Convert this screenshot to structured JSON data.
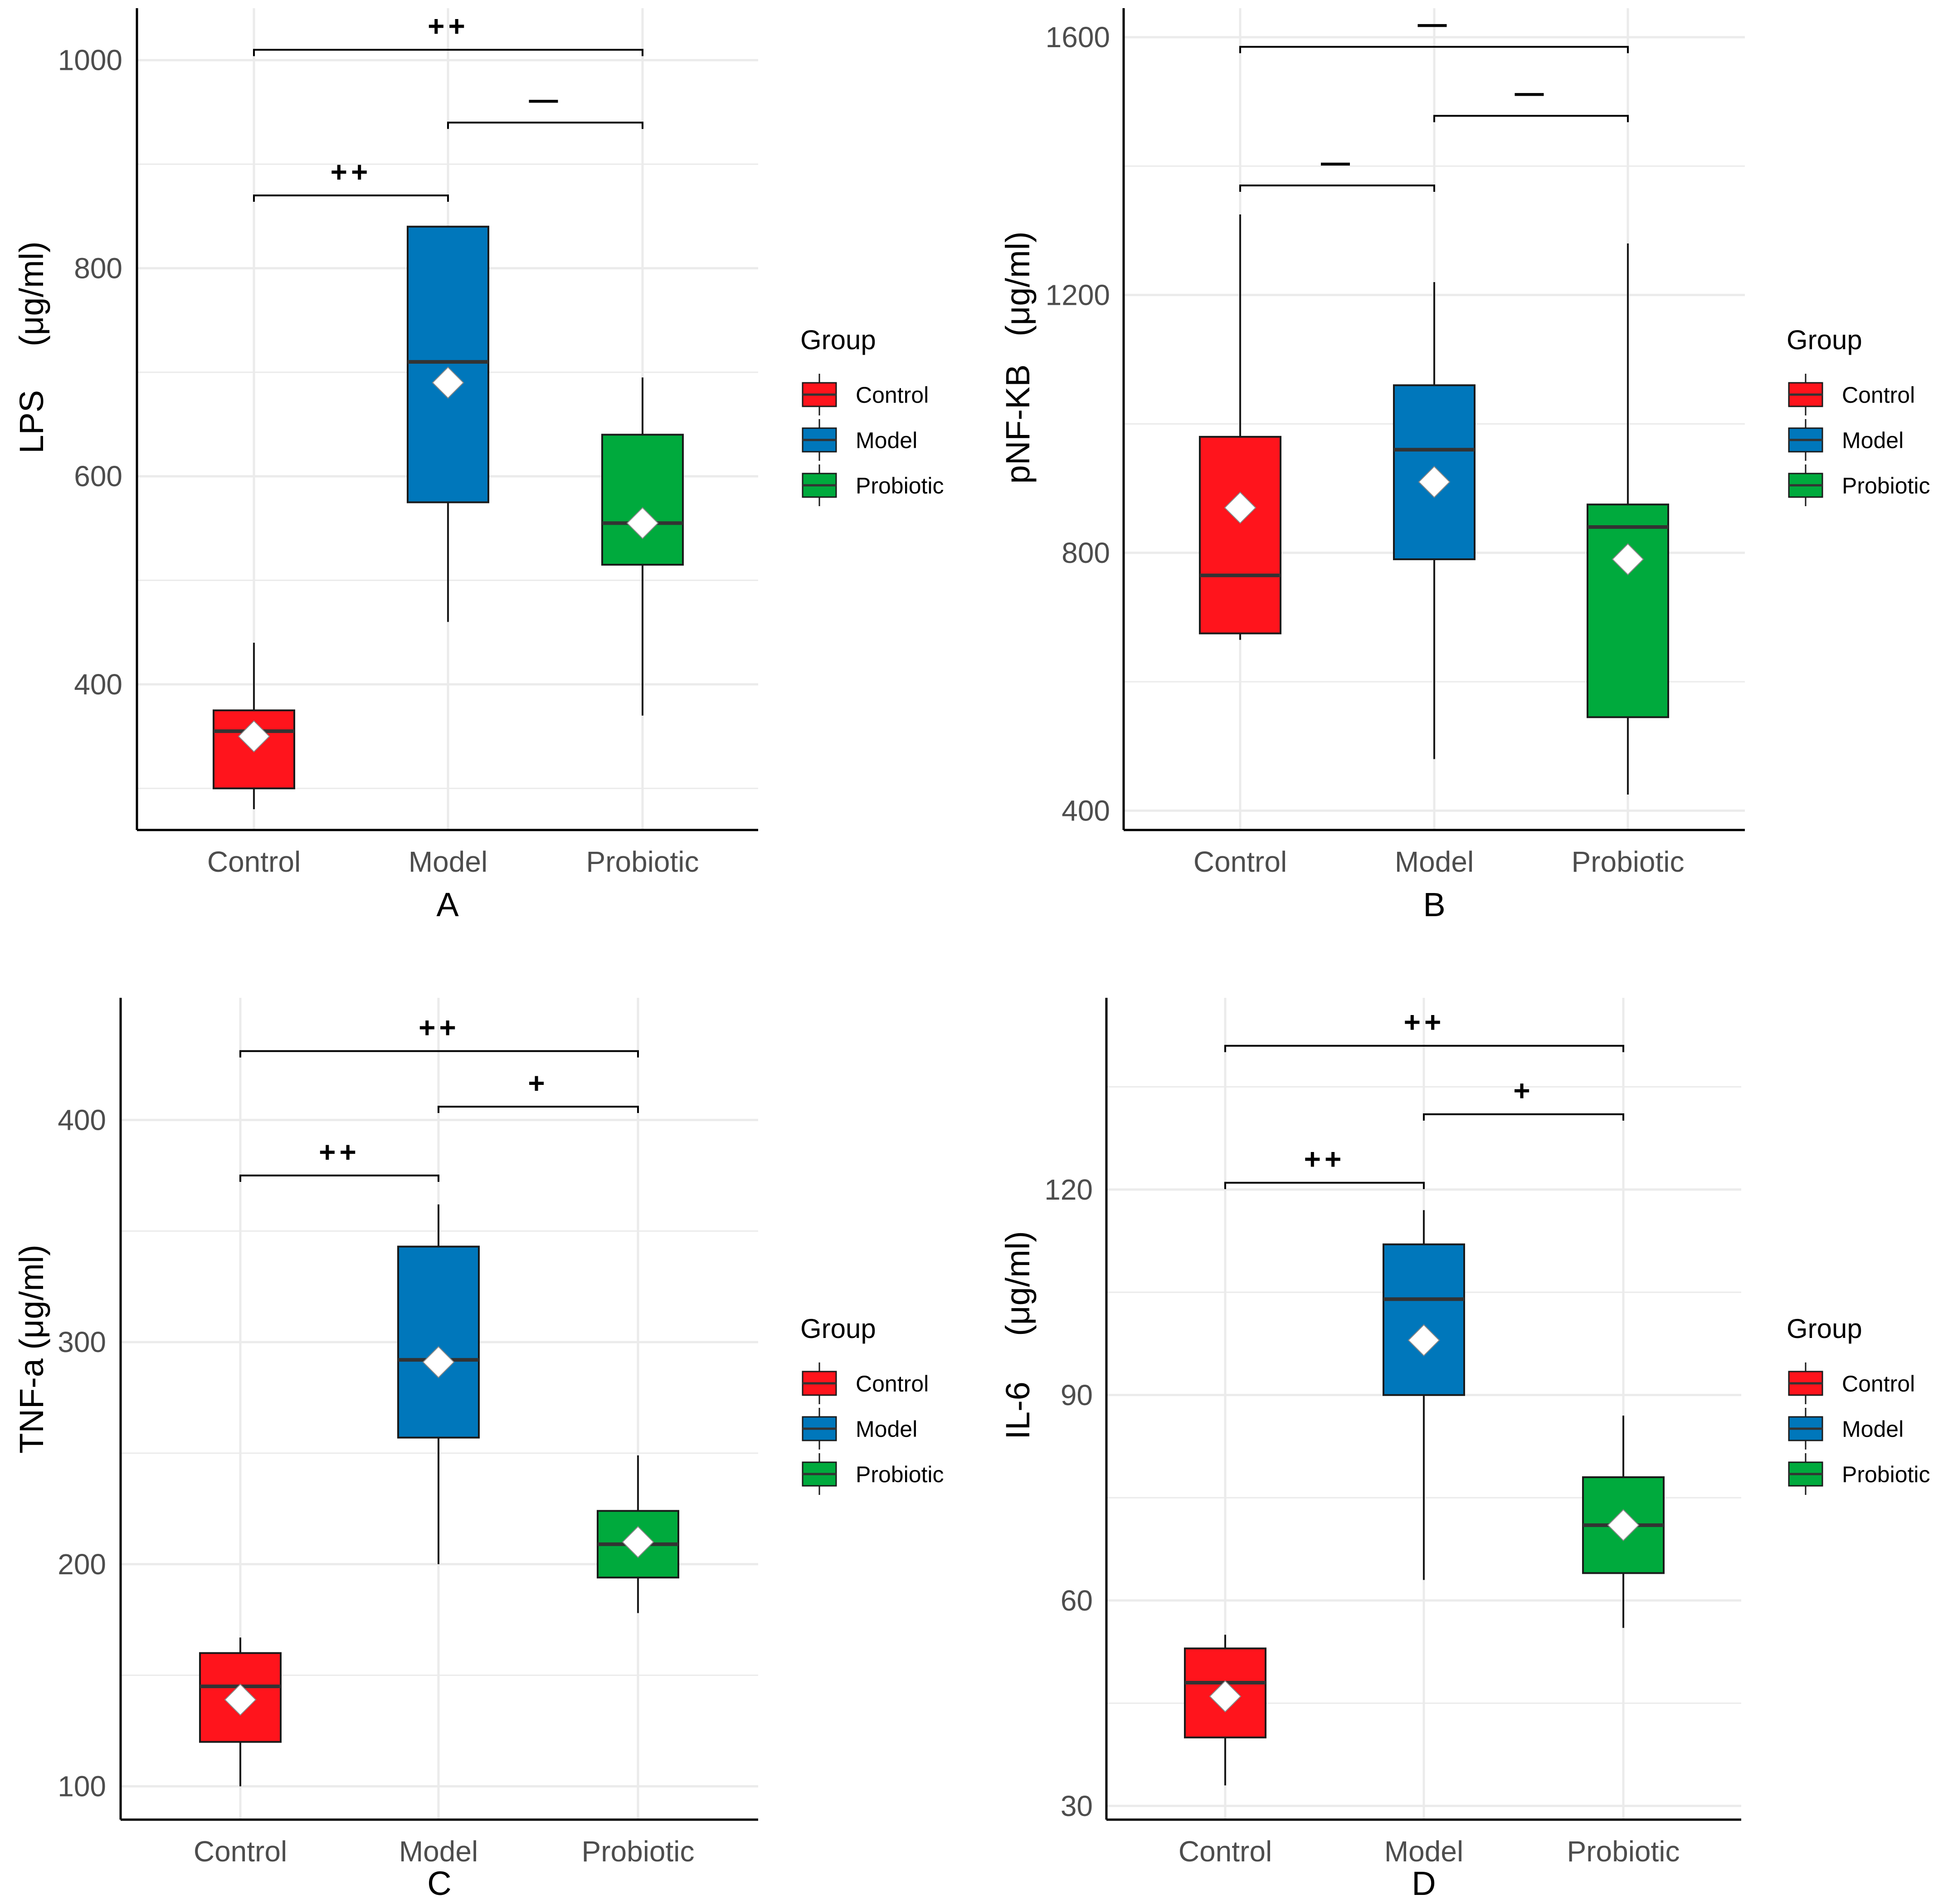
{
  "colors": {
    "Control": "#ff141c",
    "Model": "#0077bb",
    "Probiotic": "#00aa3d",
    "grid": "#ebebeb",
    "axis": "#000000",
    "mean_marker": "#ffffff",
    "median": "#333333"
  },
  "chart_data": [
    {
      "type": "box",
      "panel": "A",
      "ylabel_main": "LPS",
      "ylabel_unit": "(μg/ml)",
      "xlabel": "A",
      "categories": [
        "Control",
        "Model",
        "Probiotic"
      ],
      "ylim": [
        260,
        1050
      ],
      "major_ticks": [
        400,
        600,
        800,
        1000
      ],
      "minor_ticks": [
        300,
        500,
        700,
        900
      ],
      "boxes": [
        {
          "group": "Control",
          "min": 280,
          "q1": 300,
          "median": 355,
          "q3": 375,
          "max": 440,
          "mean": 350
        },
        {
          "group": "Model",
          "min": 460,
          "q1": 575,
          "median": 710,
          "q3": 840,
          "max": 840,
          "mean": 690
        },
        {
          "group": "Probiotic",
          "min": 370,
          "q1": 515,
          "median": 555,
          "q3": 640,
          "max": 695,
          "mean": 555
        }
      ],
      "comparisons": [
        {
          "from": "Control",
          "to": "Probiotic",
          "y": 1010,
          "label": "++"
        },
        {
          "from": "Model",
          "to": "Probiotic",
          "y": 940,
          "label": "—"
        },
        {
          "from": "Control",
          "to": "Model",
          "y": 870,
          "label": "++"
        }
      ],
      "legend": {
        "title": "Group",
        "entries": [
          "Control",
          "Model",
          "Probiotic"
        ],
        "position": "right"
      }
    },
    {
      "type": "box",
      "panel": "B",
      "ylabel_main": "pNF-KB",
      "ylabel_unit": "(μg/ml)",
      "xlabel": "B",
      "categories": [
        "Control",
        "Model",
        "Probiotic"
      ],
      "ylim": [
        370,
        1645
      ],
      "major_ticks": [
        400,
        800,
        1200,
        1600
      ],
      "minor_ticks": [
        600,
        1000,
        1400
      ],
      "boxes": [
        {
          "group": "Control",
          "min": 665,
          "q1": 675,
          "median": 765,
          "q3": 980,
          "max": 1325,
          "mean": 870
        },
        {
          "group": "Model",
          "min": 480,
          "q1": 790,
          "median": 960,
          "q3": 1060,
          "max": 1220,
          "mean": 910
        },
        {
          "group": "Probiotic",
          "min": 425,
          "q1": 545,
          "median": 840,
          "q3": 875,
          "max": 1280,
          "mean": 790
        }
      ],
      "comparisons": [
        {
          "from": "Control",
          "to": "Probiotic",
          "y": 1585,
          "label": "—"
        },
        {
          "from": "Model",
          "to": "Probiotic",
          "y": 1478,
          "label": "—"
        },
        {
          "from": "Control",
          "to": "Model",
          "y": 1370,
          "label": "—"
        }
      ],
      "legend": {
        "title": "Group",
        "entries": [
          "Control",
          "Model",
          "Probiotic"
        ],
        "position": "right"
      }
    },
    {
      "type": "box",
      "panel": "C",
      "ylabel_main": "TNF-a",
      "ylabel_unit": "(μg/ml)",
      "xlabel": "C",
      "categories": [
        "Control",
        "Model",
        "Probiotic"
      ],
      "ylim": [
        85,
        455
      ],
      "major_ticks": [
        100,
        200,
        300,
        400
      ],
      "minor_ticks": [
        150,
        250,
        350
      ],
      "boxes": [
        {
          "group": "Control",
          "min": 100,
          "q1": 120,
          "median": 145,
          "q3": 160,
          "max": 167,
          "mean": 139
        },
        {
          "group": "Model",
          "min": 200,
          "q1": 257,
          "median": 292,
          "q3": 343,
          "max": 362,
          "mean": 291
        },
        {
          "group": "Probiotic",
          "min": 178,
          "q1": 194,
          "median": 209,
          "q3": 224,
          "max": 249,
          "mean": 210
        }
      ],
      "comparisons": [
        {
          "from": "Control",
          "to": "Probiotic",
          "y": 431,
          "label": "++"
        },
        {
          "from": "Model",
          "to": "Probiotic",
          "y": 406,
          "label": "+"
        },
        {
          "from": "Control",
          "to": "Model",
          "y": 375,
          "label": "++"
        }
      ],
      "legend": {
        "title": "Group",
        "entries": [
          "Control",
          "Model",
          "Probiotic"
        ],
        "position": "right"
      }
    },
    {
      "type": "box",
      "panel": "D",
      "ylabel_main": "IL-6",
      "ylabel_unit": "(μg/ml)",
      "xlabel": "D",
      "categories": [
        "Control",
        "Model",
        "Probiotic"
      ],
      "ylim": [
        28,
        148
      ],
      "major_ticks": [
        30,
        60,
        90,
        120
      ],
      "minor_ticks": [
        45,
        75,
        105,
        135
      ],
      "boxes": [
        {
          "group": "Control",
          "min": 33,
          "q1": 40,
          "median": 48,
          "q3": 53,
          "max": 55,
          "mean": 46
        },
        {
          "group": "Model",
          "min": 63,
          "q1": 90,
          "median": 104,
          "q3": 112,
          "max": 117,
          "mean": 98
        },
        {
          "group": "Probiotic",
          "min": 56,
          "q1": 64,
          "median": 71,
          "q3": 78,
          "max": 87,
          "mean": 71
        }
      ],
      "comparisons": [
        {
          "from": "Control",
          "to": "Probiotic",
          "y": 141,
          "label": "++"
        },
        {
          "from": "Model",
          "to": "Probiotic",
          "y": 131,
          "label": "+"
        },
        {
          "from": "Control",
          "to": "Model",
          "y": 121,
          "label": "++"
        }
      ],
      "legend": {
        "title": "Group",
        "entries": [
          "Control",
          "Model",
          "Probiotic"
        ],
        "position": "right"
      }
    }
  ]
}
